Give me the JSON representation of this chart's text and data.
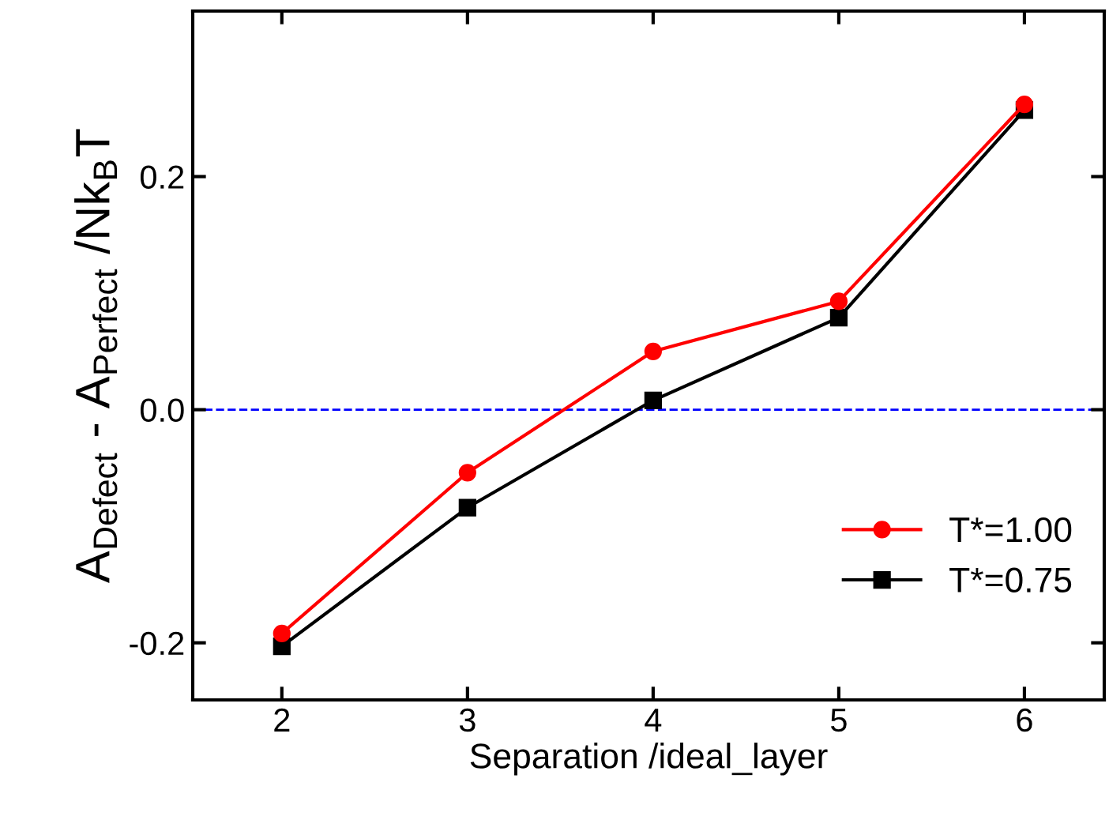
{
  "chart_data": {
    "type": "line",
    "xlabel": "Separation /ideal_layer",
    "ylabel": "A$_{Defect}$ - A$_{Perfect}$ /Nk$_{B}$T",
    "x": [
      2,
      3,
      4,
      5,
      6
    ],
    "series": [
      {
        "name": "T*=1.00",
        "color": "#ff0000",
        "marker": "circle",
        "values": [
          -0.192,
          -0.054,
          0.05,
          0.093,
          0.262
        ]
      },
      {
        "name": "T*=0.75",
        "color": "#000000",
        "marker": "square",
        "values": [
          -0.203,
          -0.084,
          0.008,
          0.079,
          0.257
        ]
      }
    ],
    "xlim": [
      1.52,
      6.43
    ],
    "ylim": [
      -0.249,
      0.342
    ],
    "xticks": [
      2,
      3,
      4,
      5,
      6
    ],
    "yticks": [
      {
        "value": -0.2,
        "label": "-0.2"
      },
      {
        "value": 0.0,
        "label": "0.0"
      },
      {
        "value": 0.2,
        "label": "0.2"
      }
    ],
    "ref_lines": [
      {
        "axis": "y",
        "value": 0,
        "color": "#0000ff",
        "line_style": "dashed"
      }
    ],
    "legend": "lower right",
    "grid": false,
    "line_style": "solid"
  }
}
